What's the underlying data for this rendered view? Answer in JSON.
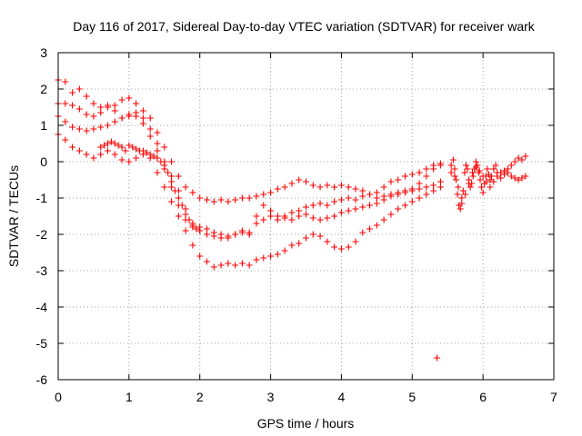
{
  "chart_data": {
    "type": "scatter",
    "title": "Day 116 of 2017, Sidereal Day-to-day VTEC variation (SDTVAR) for receiver wark",
    "xlabel": "GPS time / hours",
    "ylabel": "SDTVAR / TECUs",
    "xlim": [
      0,
      7
    ],
    "ylim": [
      -6,
      3
    ],
    "xticks": [
      "0",
      "1",
      "2",
      "3",
      "4",
      "5",
      "6",
      "7"
    ],
    "yticks": [
      "-6",
      "-5",
      "-4",
      "-3",
      "-2",
      "-1",
      "0",
      "1",
      "2",
      "3"
    ],
    "grid": true,
    "marker": "+",
    "series_color": "#ff0000",
    "series": [
      {
        "points": [
          [
            0.0,
            2.25
          ],
          [
            0.1,
            2.2
          ],
          [
            0.2,
            1.9
          ],
          [
            0.3,
            2.0
          ],
          [
            0.4,
            1.8
          ],
          [
            0.5,
            1.6
          ],
          [
            0.6,
            1.5
          ],
          [
            0.7,
            1.55
          ],
          [
            0.8,
            1.4
          ],
          [
            0.9,
            1.2
          ],
          [
            1.0,
            1.25
          ],
          [
            1.1,
            1.35
          ],
          [
            1.2,
            1.2
          ],
          [
            1.3,
            0.9
          ],
          [
            1.4,
            0.5
          ],
          [
            1.5,
            0.0
          ],
          [
            1.6,
            -0.4
          ],
          [
            1.7,
            -0.8
          ],
          [
            1.8,
            -1.3
          ],
          [
            1.9,
            -1.7
          ],
          [
            2.0,
            -1.8
          ],
          [
            2.1,
            -1.85
          ],
          [
            2.2,
            -1.95
          ],
          [
            2.3,
            -2.0
          ],
          [
            2.4,
            -2.1
          ],
          [
            2.5,
            -2.0
          ],
          [
            2.6,
            -1.9
          ],
          [
            2.7,
            -1.95
          ],
          [
            2.8,
            -1.7
          ],
          [
            2.9,
            -1.6
          ],
          [
            3.0,
            -1.5
          ],
          [
            3.1,
            -1.6
          ],
          [
            3.2,
            -1.5
          ],
          [
            3.3,
            -1.4
          ],
          [
            3.4,
            -1.35
          ],
          [
            3.5,
            -1.25
          ],
          [
            3.6,
            -1.2
          ],
          [
            3.7,
            -1.15
          ],
          [
            3.8,
            -1.2
          ],
          [
            3.9,
            -1.1
          ],
          [
            4.0,
            -1.05
          ],
          [
            4.1,
            -1.0
          ],
          [
            4.2,
            -1.05
          ],
          [
            4.3,
            -0.95
          ],
          [
            4.4,
            -0.9
          ],
          [
            4.5,
            -0.85
          ],
          [
            4.6,
            -0.7
          ],
          [
            4.7,
            -0.55
          ],
          [
            4.8,
            -0.5
          ],
          [
            4.9,
            -0.4
          ],
          [
            5.0,
            -0.35
          ],
          [
            5.1,
            -0.3
          ],
          [
            5.2,
            -0.2
          ],
          [
            5.3,
            -0.1
          ],
          [
            5.4,
            -0.05
          ]
        ]
      },
      {
        "points": [
          [
            0.0,
            1.6
          ],
          [
            0.1,
            1.6
          ],
          [
            0.2,
            1.55
          ],
          [
            0.3,
            1.45
          ],
          [
            0.4,
            1.3
          ],
          [
            0.5,
            1.25
          ],
          [
            0.6,
            1.35
          ],
          [
            0.7,
            1.5
          ],
          [
            0.8,
            1.55
          ],
          [
            0.9,
            1.7
          ],
          [
            1.0,
            1.75
          ],
          [
            1.1,
            1.6
          ],
          [
            1.2,
            1.4
          ],
          [
            1.3,
            1.2
          ],
          [
            1.4,
            0.8
          ],
          [
            1.5,
            0.4
          ],
          [
            1.6,
            0.0
          ],
          [
            1.7,
            -0.4
          ],
          [
            1.8,
            -0.7
          ],
          [
            1.9,
            -0.85
          ],
          [
            2.0,
            -1.0
          ],
          [
            2.1,
            -1.05
          ],
          [
            2.2,
            -1.1
          ],
          [
            2.3,
            -1.05
          ],
          [
            2.4,
            -1.1
          ],
          [
            2.5,
            -1.05
          ],
          [
            2.6,
            -1.0
          ],
          [
            2.7,
            -1.0
          ],
          [
            2.8,
            -0.95
          ],
          [
            2.9,
            -0.9
          ],
          [
            3.0,
            -0.85
          ],
          [
            3.1,
            -0.75
          ],
          [
            3.2,
            -0.7
          ],
          [
            3.3,
            -0.6
          ],
          [
            3.4,
            -0.5
          ],
          [
            3.5,
            -0.55
          ],
          [
            3.6,
            -0.65
          ],
          [
            3.7,
            -0.7
          ],
          [
            3.8,
            -0.65
          ],
          [
            3.9,
            -0.7
          ],
          [
            4.0,
            -0.65
          ],
          [
            4.1,
            -0.7
          ],
          [
            4.2,
            -0.75
          ],
          [
            4.3,
            -0.8
          ],
          [
            4.4,
            -0.9
          ],
          [
            4.5,
            -1.0
          ],
          [
            4.6,
            -0.95
          ],
          [
            4.7,
            -0.9
          ],
          [
            4.8,
            -0.85
          ],
          [
            4.9,
            -0.8
          ],
          [
            5.0,
            -0.75
          ],
          [
            5.1,
            -0.6
          ],
          [
            5.2,
            -0.4
          ],
          [
            5.3,
            -0.2
          ],
          [
            5.4,
            -0.1
          ]
        ]
      },
      {
        "points": [
          [
            0.0,
            1.25
          ],
          [
            0.1,
            1.1
          ],
          [
            0.2,
            0.95
          ],
          [
            0.3,
            0.9
          ],
          [
            0.4,
            0.85
          ],
          [
            0.5,
            0.9
          ],
          [
            0.6,
            0.95
          ],
          [
            0.7,
            1.0
          ],
          [
            0.8,
            1.1
          ],
          [
            0.9,
            1.2
          ],
          [
            1.0,
            1.3
          ],
          [
            1.1,
            1.25
          ],
          [
            1.2,
            1.05
          ],
          [
            1.3,
            0.7
          ],
          [
            1.4,
            0.3
          ],
          [
            1.5,
            -0.2
          ],
          [
            1.6,
            -0.7
          ],
          [
            1.7,
            -1.2
          ],
          [
            1.8,
            -1.6
          ],
          [
            1.9,
            -1.8
          ],
          [
            2.0,
            -1.9
          ],
          [
            2.1,
            -2.0
          ],
          [
            2.2,
            -2.05
          ],
          [
            2.3,
            -2.1
          ],
          [
            2.4,
            -2.05
          ],
          [
            2.5,
            -2.0
          ],
          [
            2.6,
            -1.95
          ],
          [
            2.7,
            -2.0
          ],
          [
            2.8,
            -1.5
          ],
          [
            2.9,
            -1.2
          ],
          [
            3.0,
            -1.35
          ],
          [
            3.1,
            -1.5
          ],
          [
            3.2,
            -1.55
          ],
          [
            3.3,
            -1.6
          ],
          [
            3.4,
            -1.5
          ],
          [
            3.5,
            -1.45
          ],
          [
            3.6,
            -1.55
          ],
          [
            3.7,
            -1.6
          ],
          [
            3.8,
            -1.55
          ],
          [
            3.9,
            -1.5
          ],
          [
            4.0,
            -1.4
          ],
          [
            4.1,
            -1.35
          ],
          [
            4.2,
            -1.3
          ],
          [
            4.3,
            -1.25
          ],
          [
            4.4,
            -1.2
          ],
          [
            4.5,
            -1.15
          ],
          [
            4.6,
            -1.05
          ],
          [
            4.7,
            -0.95
          ],
          [
            4.8,
            -0.9
          ],
          [
            4.9,
            -0.85
          ],
          [
            5.0,
            -0.8
          ],
          [
            5.1,
            -0.75
          ],
          [
            5.2,
            -0.7
          ],
          [
            5.3,
            -0.65
          ],
          [
            5.4,
            -0.55
          ]
        ]
      },
      {
        "points": [
          [
            0.0,
            0.75
          ],
          [
            0.1,
            0.6
          ],
          [
            0.2,
            0.4
          ],
          [
            0.3,
            0.3
          ],
          [
            0.4,
            0.2
          ],
          [
            0.5,
            0.1
          ],
          [
            0.6,
            0.2
          ],
          [
            0.7,
            0.3
          ],
          [
            0.8,
            0.2
          ],
          [
            0.9,
            0.05
          ],
          [
            1.0,
            0.0
          ],
          [
            1.1,
            0.1
          ],
          [
            1.2,
            0.2
          ],
          [
            1.3,
            0.1
          ],
          [
            1.4,
            -0.3
          ],
          [
            1.5,
            -0.7
          ],
          [
            1.6,
            -1.1
          ],
          [
            1.7,
            -1.5
          ],
          [
            1.8,
            -1.9
          ],
          [
            1.9,
            -2.3
          ],
          [
            2.0,
            -2.6
          ],
          [
            2.1,
            -2.75
          ],
          [
            2.2,
            -2.9
          ],
          [
            2.3,
            -2.85
          ],
          [
            2.4,
            -2.8
          ],
          [
            2.5,
            -2.85
          ],
          [
            2.6,
            -2.8
          ],
          [
            2.7,
            -2.85
          ],
          [
            2.8,
            -2.7
          ],
          [
            2.9,
            -2.65
          ],
          [
            3.0,
            -2.6
          ],
          [
            3.1,
            -2.55
          ],
          [
            3.2,
            -2.45
          ],
          [
            3.3,
            -2.3
          ],
          [
            3.4,
            -2.25
          ],
          [
            3.5,
            -2.1
          ],
          [
            3.6,
            -2.0
          ],
          [
            3.7,
            -2.05
          ],
          [
            3.8,
            -2.2
          ],
          [
            3.9,
            -2.35
          ],
          [
            4.0,
            -2.4
          ],
          [
            4.1,
            -2.35
          ],
          [
            4.2,
            -2.2
          ],
          [
            4.3,
            -1.95
          ],
          [
            4.4,
            -1.85
          ],
          [
            4.5,
            -1.75
          ],
          [
            4.6,
            -1.6
          ],
          [
            4.7,
            -1.45
          ],
          [
            4.8,
            -1.3
          ],
          [
            4.9,
            -1.2
          ],
          [
            5.0,
            -1.1
          ],
          [
            5.1,
            -1.0
          ],
          [
            5.2,
            -0.9
          ],
          [
            5.3,
            -0.8
          ],
          [
            5.4,
            -0.7
          ]
        ]
      },
      {
        "points": [
          [
            1.0,
            0.45
          ],
          [
            1.05,
            0.4
          ],
          [
            1.1,
            0.35
          ],
          [
            1.15,
            0.3
          ],
          [
            1.2,
            0.3
          ],
          [
            1.25,
            0.25
          ],
          [
            1.3,
            0.2
          ],
          [
            1.35,
            0.15
          ],
          [
            1.4,
            0.1
          ],
          [
            1.45,
            0.0
          ],
          [
            1.5,
            -0.1
          ],
          [
            1.55,
            -0.3
          ],
          [
            1.6,
            -0.55
          ],
          [
            1.65,
            -0.8
          ],
          [
            1.7,
            -1.0
          ],
          [
            1.75,
            -1.2
          ],
          [
            1.8,
            -1.45
          ],
          [
            1.85,
            -1.6
          ],
          [
            1.9,
            -1.75
          ],
          [
            1.95,
            -1.85
          ],
          [
            2.0,
            -1.9
          ],
          [
            0.95,
            0.3
          ],
          [
            0.9,
            0.4
          ],
          [
            0.85,
            0.45
          ],
          [
            0.8,
            0.5
          ],
          [
            0.75,
            0.55
          ],
          [
            0.7,
            0.5
          ],
          [
            0.65,
            0.45
          ],
          [
            0.6,
            0.4
          ]
        ]
      },
      {
        "points": [
          [
            5.35,
            -5.4
          ]
        ]
      },
      {
        "points": [
          [
            5.55,
            -0.1
          ],
          [
            5.58,
            0.05
          ],
          [
            5.6,
            -0.2
          ],
          [
            5.62,
            -0.5
          ],
          [
            5.64,
            -0.9
          ],
          [
            5.66,
            -1.2
          ],
          [
            5.68,
            -1.3
          ],
          [
            5.7,
            -1.15
          ],
          [
            5.72,
            -0.8
          ],
          [
            5.74,
            -0.3
          ],
          [
            5.76,
            -0.1
          ],
          [
            5.78,
            -0.2
          ],
          [
            5.8,
            -0.5
          ],
          [
            5.82,
            -0.7
          ],
          [
            5.84,
            -0.6
          ],
          [
            5.86,
            -0.4
          ],
          [
            5.88,
            -0.2
          ],
          [
            5.9,
            0.0
          ],
          [
            5.92,
            -0.1
          ],
          [
            5.94,
            -0.3
          ],
          [
            5.96,
            -0.5
          ],
          [
            5.98,
            -0.7
          ],
          [
            6.0,
            -0.85
          ],
          [
            6.02,
            -0.6
          ],
          [
            6.04,
            -0.4
          ],
          [
            6.06,
            -0.2
          ],
          [
            6.08,
            -0.35
          ],
          [
            6.1,
            -0.5
          ],
          [
            6.12,
            -0.4
          ],
          [
            6.15,
            -0.2
          ],
          [
            6.18,
            -0.1
          ],
          [
            6.2,
            -0.3
          ],
          [
            6.25,
            -0.45
          ],
          [
            6.3,
            -0.35
          ],
          [
            6.35,
            -0.2
          ],
          [
            6.4,
            -0.1
          ],
          [
            6.45,
            0.0
          ],
          [
            6.5,
            0.1
          ],
          [
            6.55,
            0.05
          ],
          [
            6.6,
            0.15
          ]
        ]
      },
      {
        "points": [
          [
            5.55,
            -0.3
          ],
          [
            5.6,
            -0.4
          ],
          [
            5.65,
            -0.7
          ],
          [
            5.7,
            -1.0
          ],
          [
            5.75,
            -0.9
          ],
          [
            5.8,
            -0.6
          ],
          [
            5.85,
            -0.3
          ],
          [
            5.9,
            -0.15
          ],
          [
            5.95,
            -0.25
          ],
          [
            6.0,
            -0.4
          ],
          [
            6.05,
            -0.55
          ],
          [
            6.1,
            -0.7
          ],
          [
            6.15,
            -0.55
          ],
          [
            6.2,
            -0.4
          ],
          [
            6.25,
            -0.3
          ],
          [
            6.3,
            -0.25
          ],
          [
            6.35,
            -0.3
          ],
          [
            6.4,
            -0.4
          ],
          [
            6.45,
            -0.45
          ],
          [
            6.5,
            -0.5
          ],
          [
            6.55,
            -0.45
          ],
          [
            6.6,
            -0.4
          ]
        ]
      }
    ]
  }
}
